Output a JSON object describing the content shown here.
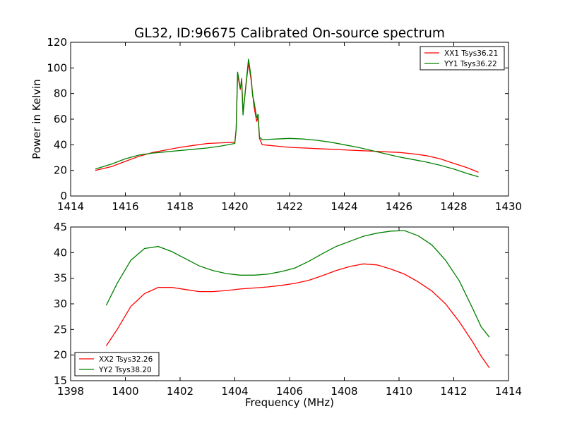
{
  "figure": {
    "title": "GL32, ID:96675 Calibrated On-source spectrum"
  },
  "chart_data": [
    {
      "type": "line",
      "title": "GL32, ID:96675 Calibrated On-source spectrum",
      "xlabel": "",
      "ylabel": "Power in Kelvin",
      "xlim": [
        1414,
        1430
      ],
      "ylim": [
        0,
        120
      ],
      "xticks": [
        "1414",
        "1416",
        "1418",
        "1420",
        "1422",
        "1424",
        "1426",
        "1428",
        "1430"
      ],
      "yticks": [
        "0",
        "20",
        "40",
        "60",
        "80",
        "100",
        "120"
      ],
      "grid": false,
      "legend_position": "top-right",
      "series": [
        {
          "name": "XX1 Tsys36.21",
          "color": "#ff0000",
          "points": [
            [
              1414.9,
              20
            ],
            [
              1415.5,
              23
            ],
            [
              1416,
              27
            ],
            [
              1416.5,
              31
            ],
            [
              1417,
              34
            ],
            [
              1417.5,
              36
            ],
            [
              1418,
              38
            ],
            [
              1418.5,
              39.5
            ],
            [
              1419,
              41
            ],
            [
              1419.5,
              41.5
            ],
            [
              1420,
              42
            ],
            [
              1420.05,
              52
            ],
            [
              1420.1,
              95
            ],
            [
              1420.2,
              83
            ],
            [
              1420.25,
              92
            ],
            [
              1420.3,
              65
            ],
            [
              1420.4,
              85
            ],
            [
              1420.5,
              104
            ],
            [
              1420.6,
              90
            ],
            [
              1420.65,
              80
            ],
            [
              1420.7,
              70
            ],
            [
              1420.8,
              58
            ],
            [
              1420.85,
              62
            ],
            [
              1420.9,
              45
            ],
            [
              1421,
              40
            ],
            [
              1421.5,
              39
            ],
            [
              1422,
              38
            ],
            [
              1422.5,
              37.5
            ],
            [
              1423,
              37
            ],
            [
              1423.5,
              36.5
            ],
            [
              1424,
              36
            ],
            [
              1424.5,
              35.5
            ],
            [
              1425,
              35
            ],
            [
              1425.5,
              34.5
            ],
            [
              1426,
              34
            ],
            [
              1426.5,
              33
            ],
            [
              1427,
              31.5
            ],
            [
              1427.5,
              29
            ],
            [
              1428,
              25.5
            ],
            [
              1428.5,
              22
            ],
            [
              1428.9,
              18.5
            ]
          ]
        },
        {
          "name": "YY1 Tsys36.22",
          "color": "#008000",
          "points": [
            [
              1414.9,
              21
            ],
            [
              1415.5,
              25
            ],
            [
              1416,
              29
            ],
            [
              1416.5,
              32
            ],
            [
              1417,
              33.5
            ],
            [
              1417.5,
              34.5
            ],
            [
              1418,
              35.5
            ],
            [
              1418.5,
              36.5
            ],
            [
              1419,
              37.5
            ],
            [
              1419.5,
              39
            ],
            [
              1420,
              41
            ],
            [
              1420.05,
              52
            ],
            [
              1420.1,
              97
            ],
            [
              1420.2,
              84
            ],
            [
              1420.25,
              91
            ],
            [
              1420.3,
              63
            ],
            [
              1420.4,
              86
            ],
            [
              1420.5,
              107
            ],
            [
              1420.6,
              92
            ],
            [
              1420.65,
              78
            ],
            [
              1420.7,
              74
            ],
            [
              1420.8,
              61
            ],
            [
              1420.85,
              64
            ],
            [
              1420.9,
              46
            ],
            [
              1421,
              44
            ],
            [
              1421.5,
              44.5
            ],
            [
              1422,
              45
            ],
            [
              1422.5,
              44.5
            ],
            [
              1423,
              43.5
            ],
            [
              1423.5,
              42
            ],
            [
              1424,
              40
            ],
            [
              1424.5,
              38
            ],
            [
              1425,
              35.5
            ],
            [
              1425.5,
              33
            ],
            [
              1426,
              30.5
            ],
            [
              1426.5,
              28.5
            ],
            [
              1427,
              26.5
            ],
            [
              1427.5,
              24
            ],
            [
              1428,
              21
            ],
            [
              1428.5,
              17.5
            ],
            [
              1428.9,
              15
            ]
          ]
        }
      ]
    },
    {
      "type": "line",
      "title": "",
      "xlabel": "Frequency (MHz)",
      "ylabel": "",
      "xlim": [
        1398,
        1414
      ],
      "ylim": [
        15,
        45
      ],
      "xticks": [
        "1398",
        "1400",
        "1402",
        "1404",
        "1406",
        "1408",
        "1410",
        "1412",
        "1414"
      ],
      "yticks": [
        "15",
        "20",
        "25",
        "30",
        "35",
        "40",
        "45"
      ],
      "grid": false,
      "legend_position": "bottom-left",
      "series": [
        {
          "name": "XX2 Tsys32.26",
          "color": "#ff0000",
          "points": [
            [
              1399.3,
              21.8
            ],
            [
              1399.7,
              25
            ],
            [
              1400.2,
              29.5
            ],
            [
              1400.7,
              32
            ],
            [
              1401.2,
              33.2
            ],
            [
              1401.7,
              33.2
            ],
            [
              1402.2,
              32.8
            ],
            [
              1402.7,
              32.4
            ],
            [
              1403.2,
              32.4
            ],
            [
              1403.7,
              32.6
            ],
            [
              1404.2,
              32.9
            ],
            [
              1404.7,
              33.1
            ],
            [
              1405.2,
              33.3
            ],
            [
              1405.7,
              33.6
            ],
            [
              1406.2,
              34
            ],
            [
              1406.7,
              34.6
            ],
            [
              1407.2,
              35.5
            ],
            [
              1407.7,
              36.5
            ],
            [
              1408.2,
              37.3
            ],
            [
              1408.7,
              37.8
            ],
            [
              1409.2,
              37.6
            ],
            [
              1409.7,
              36.8
            ],
            [
              1410.2,
              35.8
            ],
            [
              1410.7,
              34.3
            ],
            [
              1411.2,
              32.5
            ],
            [
              1411.7,
              30
            ],
            [
              1412.2,
              26.5
            ],
            [
              1412.7,
              22.5
            ],
            [
              1413.0,
              19.8
            ],
            [
              1413.3,
              17.5
            ]
          ]
        },
        {
          "name": "YY2 Tsys38.20",
          "color": "#008000",
          "points": [
            [
              1399.3,
              29.7
            ],
            [
              1399.7,
              34
            ],
            [
              1400.2,
              38.5
            ],
            [
              1400.7,
              40.8
            ],
            [
              1401.2,
              41.2
            ],
            [
              1401.7,
              40.2
            ],
            [
              1402.2,
              38.8
            ],
            [
              1402.7,
              37.4
            ],
            [
              1403.2,
              36.5
            ],
            [
              1403.7,
              35.9
            ],
            [
              1404.2,
              35.6
            ],
            [
              1404.7,
              35.6
            ],
            [
              1405.2,
              35.8
            ],
            [
              1405.7,
              36.3
            ],
            [
              1406.2,
              37
            ],
            [
              1406.7,
              38.3
            ],
            [
              1407.2,
              39.8
            ],
            [
              1407.7,
              41.2
            ],
            [
              1408.2,
              42.2
            ],
            [
              1408.7,
              43.2
            ],
            [
              1409.2,
              43.8
            ],
            [
              1409.7,
              44.2
            ],
            [
              1410.2,
              44.3
            ],
            [
              1410.7,
              43.3
            ],
            [
              1411.2,
              41.5
            ],
            [
              1411.7,
              38.5
            ],
            [
              1412.2,
              34.5
            ],
            [
              1412.7,
              29
            ],
            [
              1413.0,
              25.5
            ],
            [
              1413.3,
              23.5
            ]
          ]
        }
      ]
    }
  ]
}
